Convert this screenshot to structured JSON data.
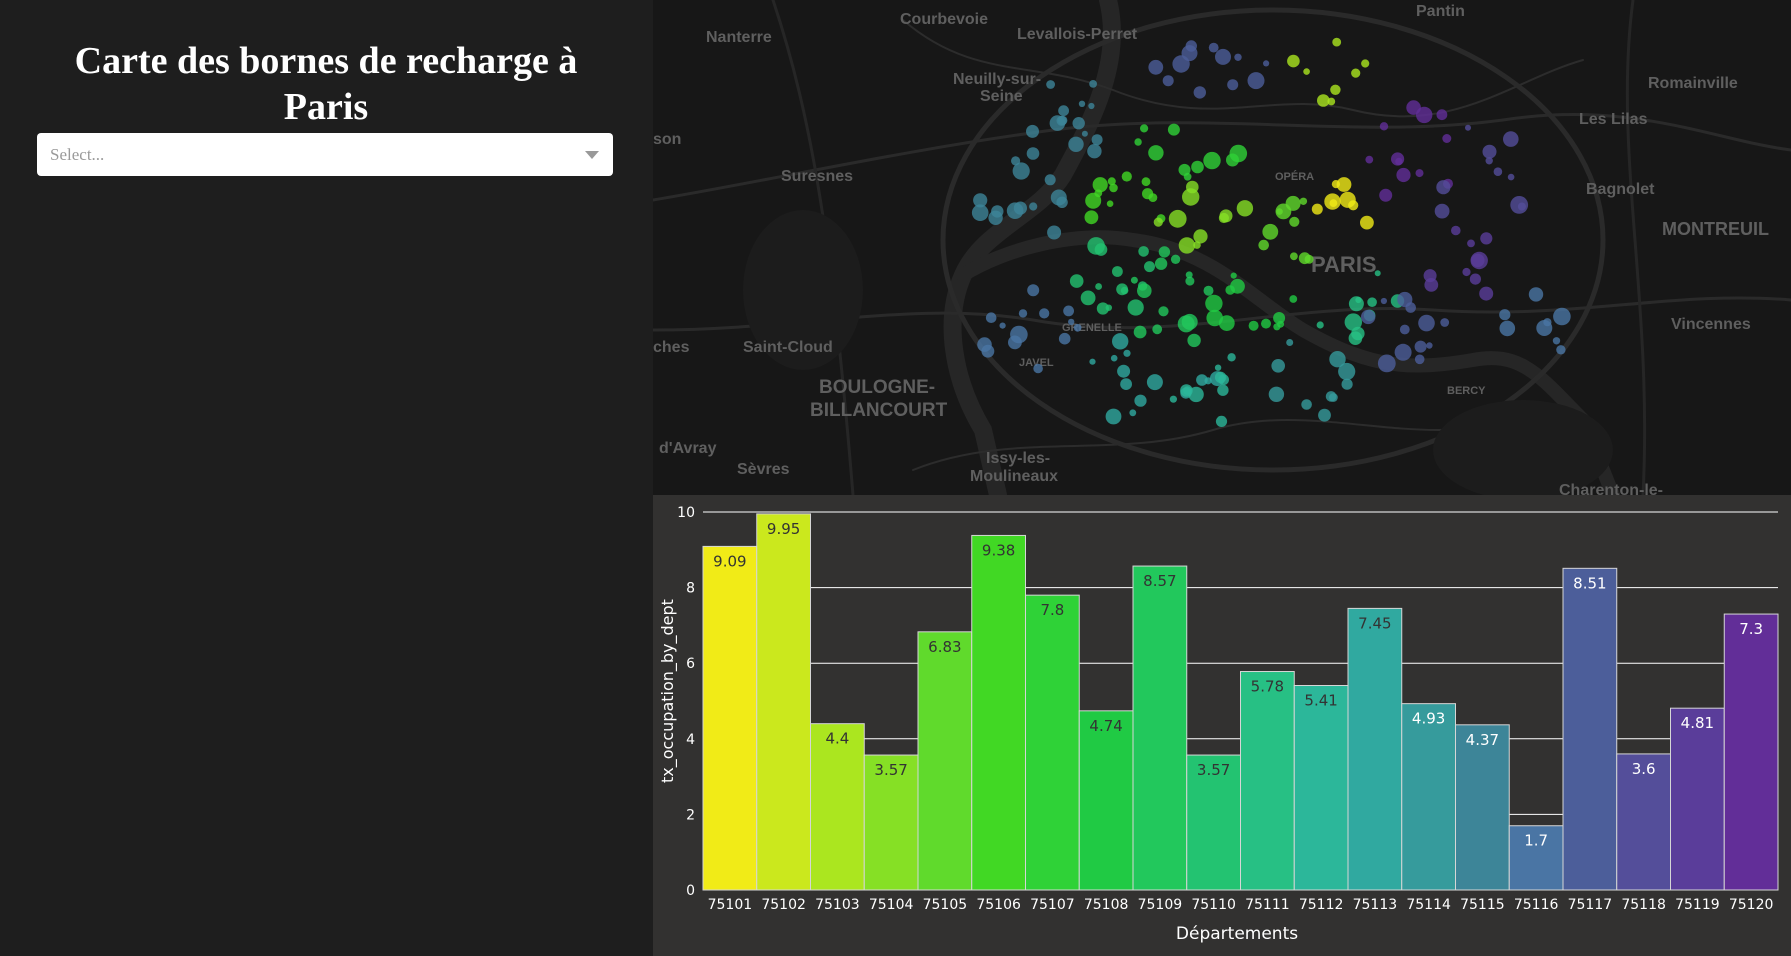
{
  "sidebar": {
    "title": "Carte des bornes de recharge à Paris",
    "dropdown_placeholder": "Select...",
    "bg_color": "#1e1e1e"
  },
  "map": {
    "style": "dark",
    "labels": [
      "Pantin",
      "Courbevoie",
      "Levallois-Perret",
      "Nanterre",
      "Neuilly-sur-",
      "Seine",
      "Romainville",
      "Les Lilas",
      "Bagnolet",
      "Suresnes",
      "MONTREUIL",
      "PARIS",
      "Saint-Cloud",
      "Vincennes",
      "BOULOGNE-",
      "BILLANCOURT",
      "Issy-les-",
      "Moulineaux",
      "Sèvres",
      "d'Avray",
      "Charenton-le-",
      "son",
      "ches",
      "OPÉRA",
      "BERCY",
      "JAVEL",
      "GRENELLE"
    ]
  },
  "chart_data": {
    "type": "bar",
    "categories": [
      "75101",
      "75102",
      "75103",
      "75104",
      "75105",
      "75106",
      "75107",
      "75108",
      "75109",
      "75110",
      "75111",
      "75112",
      "75113",
      "75114",
      "75115",
      "75116",
      "75117",
      "75118",
      "75119",
      "75120"
    ],
    "values": [
      9.09,
      9.95,
      4.4,
      3.57,
      6.83,
      9.38,
      7.8,
      4.74,
      8.57,
      3.57,
      5.78,
      5.41,
      7.45,
      4.93,
      4.37,
      1.7,
      8.51,
      3.6,
      4.81,
      7.3
    ],
    "value_labels": [
      "9.09",
      "9.95",
      "4.4",
      "3.57",
      "6.83",
      "9.38",
      "7.8",
      "4.74",
      "8.57",
      "3.57",
      "5.78",
      "5.41",
      "7.45",
      "4.93",
      "4.37",
      "1.7",
      "8.51",
      "3.6",
      "4.81",
      "7.3"
    ],
    "colors": [
      "#f1eb17",
      "#cbe81d",
      "#abe61f",
      "#86e025",
      "#60da2c",
      "#41d824",
      "#2fd237",
      "#20ca44",
      "#22c85c",
      "#23c371",
      "#27c084",
      "#2cb79a",
      "#30a9a0",
      "#369b9c",
      "#3d8598",
      "#4a75a4",
      "#4c5e9a",
      "#544e9a",
      "#5a3d9a",
      "#622e98"
    ],
    "label_colors": [
      "#333333",
      "#333333",
      "#333333",
      "#333333",
      "#333333",
      "#333333",
      "#333333",
      "#333333",
      "#333333",
      "#333333",
      "#333333",
      "#333333",
      "#333333",
      "#ffffff",
      "#ffffff",
      "#ffffff",
      "#ffffff",
      "#ffffff",
      "#ffffff",
      "#ffffff"
    ],
    "xlabel": "Départements",
    "ylabel": "tx_occupation_by_dept",
    "ylim": [
      0,
      10
    ],
    "yticks": [
      0,
      2,
      4,
      6,
      8,
      10
    ],
    "grid": true,
    "legend": false
  }
}
